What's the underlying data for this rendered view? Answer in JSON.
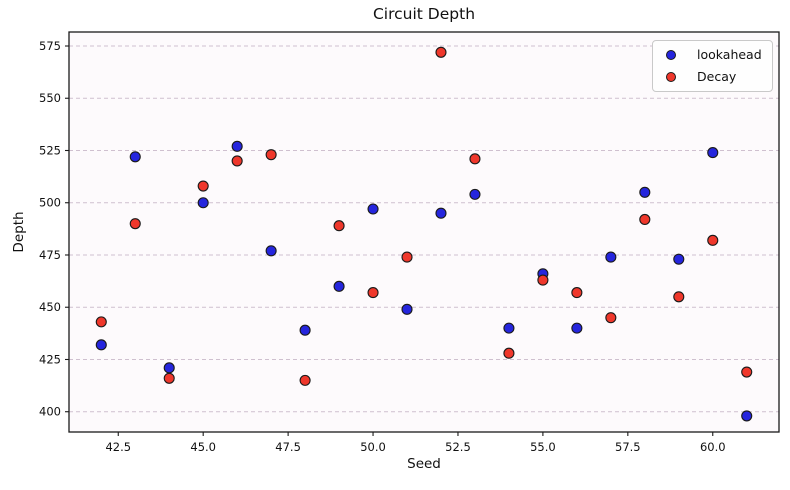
{
  "chart_data": {
    "type": "scatter",
    "title": "Circuit Depth",
    "xlabel": "Seed",
    "ylabel": "Depth",
    "x_ticks": [
      42.5,
      45.0,
      47.5,
      50.0,
      52.5,
      55.0,
      57.5,
      60.0
    ],
    "y_ticks": [
      400,
      425,
      450,
      475,
      500,
      525,
      550,
      575
    ],
    "xlim": [
      41.05,
      61.95
    ],
    "ylim": [
      390.3,
      581.7
    ],
    "grid": {
      "axis": "y",
      "style": "dashed",
      "color": "#cfc0cf"
    },
    "legend_position": "upper right",
    "marker_edge_color": "#1a1a1a",
    "plot_bg_color": "#fdfafc",
    "categories_x": [
      42,
      43,
      44,
      45,
      46,
      47,
      48,
      49,
      50,
      51,
      52,
      53,
      54,
      55,
      56,
      57,
      58,
      59,
      60,
      61
    ],
    "series": [
      {
        "name": "lookahead",
        "color": "#2525dd",
        "x": [
          42,
          43,
          44,
          45,
          46,
          47,
          48,
          49,
          50,
          51,
          52,
          53,
          54,
          55,
          56,
          57,
          58,
          59,
          60,
          61
        ],
        "y": [
          432,
          522,
          421,
          500,
          527,
          477,
          439,
          460,
          497,
          449,
          495,
          504,
          440,
          466,
          440,
          474,
          505,
          473,
          524,
          398
        ]
      },
      {
        "name": "Decay",
        "color": "#ef372b",
        "x": [
          42,
          43,
          44,
          45,
          46,
          47,
          48,
          49,
          50,
          51,
          52,
          53,
          54,
          55,
          56,
          57,
          58,
          59,
          60,
          61
        ],
        "y": [
          443,
          490,
          416,
          508,
          520,
          523,
          415,
          489,
          457,
          474,
          572,
          521,
          428,
          463,
          457,
          445,
          492,
          455,
          482,
          419
        ]
      }
    ]
  }
}
